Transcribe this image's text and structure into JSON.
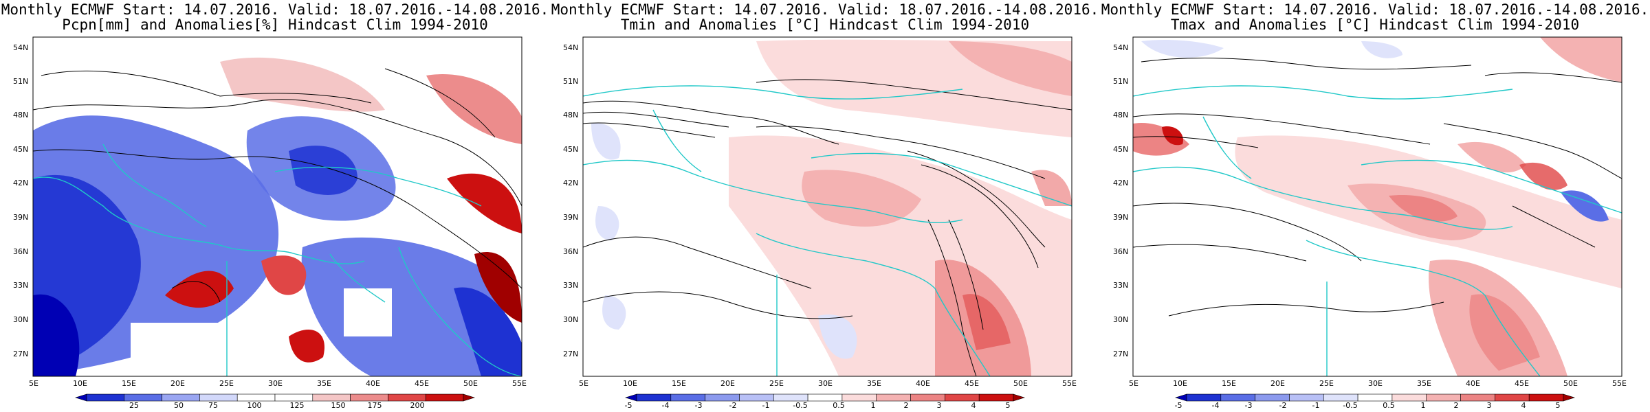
{
  "panels": [
    {
      "title_line1": "Monthly ECMWF Start: 14.07.2016. Valid: 18.07.2016.-14.08.2016.",
      "title_line2": "Pcpn[mm] and Anomalies[%] Hindcast Clim 1994-2010",
      "colorbar": {
        "labels": [
          "25",
          "50",
          "75",
          "100",
          "125",
          "150",
          "175",
          "200"
        ],
        "colors": [
          "#0000b4",
          "#1e32d2",
          "#5a6ee6",
          "#9aa6f2",
          "#d2d8fa",
          "#ffffff",
          "#ffffff",
          "#f4c6c6",
          "#ec8c8c",
          "#e04646",
          "#cc1010",
          "#a00000"
        ]
      }
    },
    {
      "title_line1": "Monthly ECMWF Start: 14.07.2016. Valid: 18.07.2016.-14.08.2016.",
      "title_line2": "Tmin and Anomalies [°C] Hindcast Clim 1994-2010",
      "colorbar": {
        "labels": [
          "-5",
          "-4",
          "-3",
          "-2",
          "-1",
          "-0.5",
          "0.5",
          "1",
          "2",
          "3",
          "4",
          "5"
        ],
        "colors": [
          "#0000b4",
          "#1e32d2",
          "#5a6ee6",
          "#8c9aee",
          "#b8c0f6",
          "#dfe3fb",
          "#ffffff",
          "#fbdcdc",
          "#f4b2b2",
          "#ec8484",
          "#e04646",
          "#cc1010",
          "#a00000"
        ]
      }
    },
    {
      "title_line1": "Monthly ECMWF Start: 14.07.2016. Valid: 18.07.2016.-14.08.2016.",
      "title_line2": "Tmax and Anomalies [°C] Hindcast Clim 1994-2010",
      "colorbar": {
        "labels": [
          "-5",
          "-4",
          "-3",
          "-2",
          "-1",
          "-0.5",
          "0.5",
          "1",
          "2",
          "3",
          "4",
          "5"
        ],
        "colors": [
          "#0000b4",
          "#1e32d2",
          "#5a6ee6",
          "#8c9aee",
          "#b8c0f6",
          "#dfe3fb",
          "#ffffff",
          "#fbdcdc",
          "#f4b2b2",
          "#ec8484",
          "#e04646",
          "#cc1010",
          "#a00000"
        ]
      }
    }
  ],
  "lat_labels": [
    "54N",
    "51N",
    "48N",
    "45N",
    "42N",
    "39N",
    "36N",
    "33N",
    "30N",
    "27N"
  ],
  "lon_labels": [
    "5E",
    "10E",
    "15E",
    "20E",
    "25E",
    "30E",
    "35E",
    "40E",
    "45E",
    "50E",
    "55E"
  ],
  "colors": {
    "frame": "#000000",
    "coast": "#20c8c8",
    "contour": "#000000",
    "grid": "#999999"
  }
}
